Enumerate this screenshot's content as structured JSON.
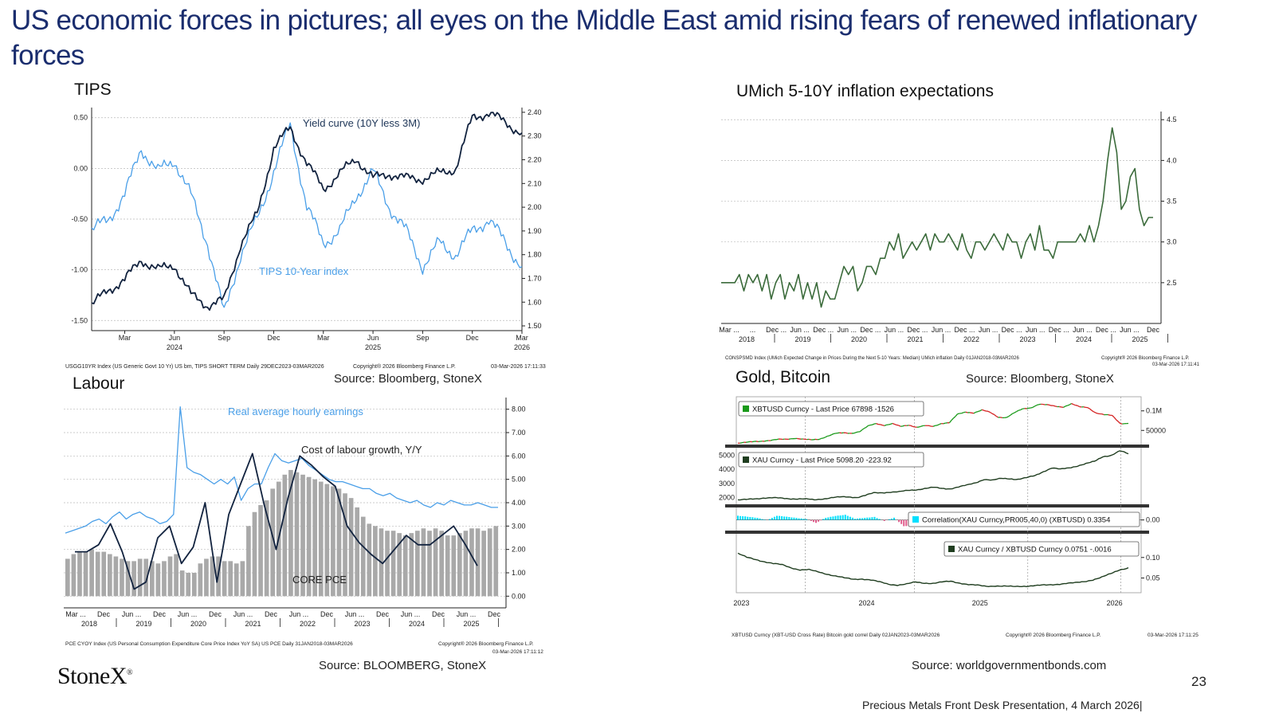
{
  "slide": {
    "title": "US  economic forces in pictures; all eyes on the Middle East amid rising fears of renewed inflationary forces",
    "page_number": "23",
    "footer": "Precious Metals Front Desk Presentation, 4 March 2026|",
    "logo_text": "StoneX",
    "logo_mark": "®",
    "colors": {
      "title": "#1a2d6e",
      "light_blue": "#4a9fe8",
      "navy": "#12233f",
      "green": "#3b6b3b",
      "bar_grey": "#a9a9a9"
    }
  },
  "panels": {
    "tips": {
      "title": "TIPS",
      "source": "Source: Bloomberg, StoneX",
      "footnote_left": "USGG10YR Index (US Generic Govt 10 Yr) US bm, TIPS SHORT TERM Daily 29DEC2023-03MAR2026",
      "footnote_mid": "Copyright® 2026 Bloomberg Finance L.P.",
      "footnote_right": "03-Mar-2026 17:11:33"
    },
    "umich": {
      "title": "UMich 5-10Y inflation expectations",
      "footnote_left": "CONSPSMD Index (UMich Expected Change in Prices During the Next 5-10 Years: Median) UMich inflation Daily 01JAN2018-03MAR2026",
      "footnote_mid": "Copyright® 2026 Bloomberg Finance L.P.",
      "footnote_right": "03-Mar-2026 17:11:41"
    },
    "labour": {
      "title": "Labour",
      "source": "Source: BLOOMBERG, StoneX",
      "footnote_left": "PCE CYOY Index (US Personal Consumption Expenditure Core Price Index YoY SA) US PCE Daily 31JAN2018-03MAR2026",
      "footnote_mid": "Copyright® 2026 Bloomberg Finance L.P.",
      "footnote_right": "03-Mar-2026 17:11:12"
    },
    "gold_btc": {
      "title": "Gold, Bitcoin",
      "source_top": "Source: Bloomberg, StoneX",
      "source_bottom": "Source: worldgovernmentbonds.com",
      "footnote_left": "XBTUSD Curncy (XBT-USD Cross Rate) Bitcoin gold correl Daily 02JAN2023-03MAR2026",
      "footnote_mid": "Copyright® 2026 Bloomberg Finance L.P.",
      "footnote_right": "03-Mar-2026 17:11:25"
    }
  },
  "chart_data": [
    {
      "id": "tips",
      "type": "line",
      "title": "TIPS",
      "x_range": [
        "2024-01-01",
        "2026-03-03"
      ],
      "x_ticks": [
        {
          "label": "Mar",
          "sub": "",
          "t": 2
        },
        {
          "label": "Jun",
          "sub": "2024",
          "t": 5
        },
        {
          "label": "Sep",
          "sub": "",
          "t": 8
        },
        {
          "label": "Dec",
          "sub": "",
          "t": 11
        },
        {
          "label": "Mar",
          "sub": "",
          "t": 14
        },
        {
          "label": "Jun",
          "sub": "2025",
          "t": 17
        },
        {
          "label": "Sep",
          "sub": "",
          "t": 20
        },
        {
          "label": "Dec",
          "sub": "",
          "t": 23
        },
        {
          "label": "Mar",
          "sub": "2026",
          "t": 26
        }
      ],
      "y_left": {
        "range": [
          -1.6,
          0.6
        ],
        "ticks": [
          "0.50",
          "0.00",
          "-0.50",
          "-1.00",
          "-1.50"
        ]
      },
      "y_right": {
        "range": [
          1.48,
          2.42
        ],
        "ticks": [
          "2.40",
          "2.30",
          "2.20",
          "2.10",
          "2.00",
          "1.90",
          "1.80",
          "1.70",
          "1.60",
          "1.50"
        ]
      },
      "series": [
        {
          "name": "Yield curve (10Y less 3M)",
          "axis": "left",
          "color": "#12233f",
          "t": [
            0,
            1,
            2,
            3,
            4,
            5,
            6,
            7,
            8,
            9,
            10,
            11,
            12,
            13,
            14,
            15,
            16,
            17,
            18,
            19,
            20,
            21,
            22,
            23,
            24,
            25,
            26
          ],
          "values": [
            -1.35,
            -1.2,
            -1.1,
            -0.9,
            -1.0,
            -0.95,
            -1.25,
            -1.35,
            -1.3,
            -0.75,
            -0.45,
            0.2,
            0.4,
            0.05,
            -0.2,
            -0.05,
            0.1,
            -0.1,
            -0.05,
            -0.1,
            -0.1,
            -0.05,
            0.0,
            0.5,
            0.55,
            0.45,
            0.35
          ]
        },
        {
          "name": "TIPS 10-Year index",
          "axis": "right",
          "color": "#4a9fe8",
          "t": [
            0,
            1,
            2,
            3,
            4,
            5,
            6,
            7,
            8,
            9,
            10,
            11,
            12,
            13,
            14,
            15,
            16,
            17,
            18,
            19,
            20,
            21,
            22,
            23,
            24,
            25,
            26
          ],
          "values": [
            1.9,
            1.95,
            2.05,
            2.25,
            2.15,
            2.2,
            2.05,
            1.85,
            1.55,
            1.8,
            1.95,
            2.15,
            2.35,
            2.0,
            1.85,
            1.9,
            2.05,
            2.15,
            2.0,
            1.9,
            1.75,
            1.85,
            1.8,
            1.9,
            1.95,
            1.85,
            1.75
          ]
        }
      ],
      "annotations": [
        "Yield curve (10Y less 3M)",
        "TIPS 10-Year index"
      ]
    },
    {
      "id": "umich",
      "type": "line",
      "title": "UMich 5-10Y inflation expectations",
      "x_ticks_top": [
        "Mar ...",
        "...",
        "Dec ...",
        "Jun ...",
        "Dec ...",
        "Jun ...",
        "Dec ...",
        "Jun ...",
        "Dec ...",
        "Jun ...",
        "Dec ...",
        "Jun ...",
        "Dec ...",
        "Jun ...",
        "Dec ...",
        "Jun ...",
        "Dec ...",
        "Jun ...",
        "Dec"
      ],
      "x_ticks_year": [
        "2018",
        "2019",
        "2020",
        "2021",
        "2022",
        "2023",
        "2024",
        "2025"
      ],
      "y_right": {
        "range": [
          2.0,
          4.6
        ],
        "ticks": [
          "4.5",
          "4.0",
          "3.5",
          "3.0",
          "2.5"
        ]
      },
      "series": [
        {
          "name": "",
          "color": "#3b6b3b",
          "values": [
            2.5,
            2.5,
            2.5,
            2.5,
            2.6,
            2.4,
            2.6,
            2.5,
            2.6,
            2.4,
            2.6,
            2.3,
            2.5,
            2.6,
            2.3,
            2.5,
            2.4,
            2.6,
            2.3,
            2.5,
            2.3,
            2.5,
            2.2,
            2.4,
            2.3,
            2.3,
            2.5,
            2.7,
            2.6,
            2.7,
            2.4,
            2.5,
            2.7,
            2.7,
            2.6,
            2.8,
            2.8,
            3.0,
            2.9,
            3.1,
            2.8,
            2.9,
            3.0,
            2.9,
            3.0,
            3.1,
            2.9,
            3.1,
            3.0,
            3.0,
            3.1,
            3.0,
            2.9,
            3.1,
            2.9,
            2.8,
            3.0,
            3.0,
            2.9,
            3.0,
            3.1,
            3.0,
            2.9,
            3.1,
            3.0,
            3.0,
            2.8,
            3.0,
            3.1,
            2.9,
            3.2,
            2.9,
            2.9,
            2.8,
            3.0,
            3.0,
            3.0,
            3.0,
            3.0,
            3.1,
            3.0,
            3.2,
            3.0,
            3.2,
            3.5,
            4.0,
            4.4,
            4.1,
            3.4,
            3.5,
            3.8,
            3.9,
            3.4,
            3.2,
            3.3,
            3.3
          ]
        }
      ]
    },
    {
      "id": "labour",
      "type": "bar",
      "title": "Labour",
      "x_ticks_top": [
        "Mar ...",
        "Dec",
        "Jun ...",
        "Dec",
        "Jun ...",
        "Dec",
        "Jun ...",
        "Dec",
        "Jun ...",
        "Dec",
        "Jun ...",
        "Dec",
        "Jun ...",
        "Dec",
        "Jun ...",
        "Dec"
      ],
      "x_ticks_year": [
        "2018",
        "2019",
        "2020",
        "2021",
        "2022",
        "2023",
        "2024",
        "2025"
      ],
      "y_right": {
        "range": [
          -0.5,
          8.5
        ],
        "ticks": [
          "8.00",
          "7.00",
          "6.00",
          "5.00",
          "4.00",
          "3.00",
          "2.00",
          "1.00",
          "0.00"
        ]
      },
      "series": [
        {
          "name": "CORE PCE",
          "type": "bar",
          "color": "#a9a9a9",
          "values": [
            1.6,
            1.8,
            1.9,
            1.9,
            2.0,
            1.9,
            1.9,
            1.8,
            1.7,
            1.6,
            1.5,
            1.5,
            1.6,
            1.6,
            1.5,
            1.4,
            1.5,
            1.7,
            1.8,
            1.1,
            1.0,
            1.0,
            1.4,
            1.6,
            1.7,
            1.7,
            1.5,
            1.5,
            1.4,
            1.5,
            3.0,
            3.6,
            3.9,
            4.1,
            4.6,
            4.9,
            5.2,
            5.4,
            5.3,
            5.2,
            5.1,
            5.0,
            4.9,
            4.8,
            4.7,
            4.6,
            4.4,
            4.2,
            3.8,
            3.4,
            3.1,
            3.0,
            2.9,
            2.8,
            2.8,
            2.7,
            2.6,
            2.7,
            2.8,
            2.9,
            2.8,
            2.9,
            2.8,
            2.6,
            2.6,
            2.7,
            2.8,
            2.9,
            2.9,
            2.8,
            2.9,
            3.0
          ]
        },
        {
          "name": "Real average hourly earnings",
          "type": "line",
          "color": "#4a9fe8",
          "values": [
            2.7,
            2.8,
            2.9,
            3.0,
            3.2,
            3.3,
            3.1,
            3.4,
            3.6,
            3.3,
            3.5,
            3.6,
            3.4,
            3.3,
            3.1,
            3.2,
            3.5,
            8.1,
            5.5,
            5.3,
            5.2,
            5.0,
            4.8,
            5.0,
            4.8,
            5.1,
            4.1,
            4.6,
            4.8,
            4.8,
            5.5,
            6.1,
            5.8,
            5.7,
            5.8,
            5.9,
            5.6,
            5.4,
            5.2,
            5.0,
            4.9,
            4.9,
            4.8,
            4.7,
            4.6,
            4.6,
            4.4,
            4.3,
            4.4,
            4.2,
            4.1,
            4.0,
            4.1,
            3.9,
            3.8,
            4.0,
            3.9,
            4.1,
            4.0,
            3.9,
            3.9,
            4.0,
            3.9,
            3.8,
            3.8
          ]
        },
        {
          "name": "Cost of labour growth, Y/Y",
          "type": "line",
          "color": "#12233f",
          "values": [
            1.9,
            1.9,
            2.2,
            3.1,
            1.9,
            0.3,
            0.6,
            2.5,
            3.0,
            1.4,
            2.1,
            4.0,
            0.6,
            3.5,
            4.8,
            6.1,
            3.9,
            2.0,
            4.2,
            6.0,
            5.6,
            5.1,
            4.7,
            3.0,
            2.3,
            1.8,
            1.4,
            2.0,
            2.6,
            2.2,
            2.2,
            2.6,
            3.0,
            2.2,
            1.3
          ]
        }
      ],
      "annotations": [
        "Real average hourly earnings",
        "Cost of labour growth, Y/Y",
        "CORE PCE"
      ]
    },
    {
      "id": "gold_btc",
      "type": "line",
      "title": "Gold, Bitcoin",
      "x_ticks": [
        "2023",
        "2024",
        "2025",
        "2026"
      ],
      "panes": [
        {
          "legend": "XBTUSD Curncy - Last Price 67898  -1526",
          "y_ticks": [
            "0.1M",
            "50000"
          ],
          "y_range": [
            20000,
            130000
          ],
          "color_up": "#1a9a1a",
          "color_down": "#d42020",
          "values": [
            17000,
            19000,
            22000,
            23000,
            24000,
            27000,
            28000,
            30000,
            27000,
            26000,
            28000,
            35000,
            42000,
            44000,
            43000,
            47000,
            61000,
            68000,
            63000,
            67000,
            60000,
            64000,
            58000,
            62000,
            60000,
            68000,
            70000,
            91000,
            97000,
            95000,
            102000,
            96000,
            84000,
            83000,
            95000,
            105000,
            108000,
            117000,
            115000,
            112000,
            110000,
            118000,
            110000,
            109000,
            95000,
            90000,
            88000,
            68000,
            67898
          ]
        },
        {
          "legend": "XAU Curncy - Last Price 5098.20  -223.92",
          "y_ticks": [
            "5000",
            "4000",
            "3000",
            "2000"
          ],
          "y_range": [
            1700,
            5300
          ],
          "color": "#1f3d1f",
          "values": [
            1830,
            1860,
            1920,
            1980,
            1990,
            1960,
            1930,
            1920,
            1900,
            1840,
            1920,
            2000,
            2040,
            2050,
            2020,
            2160,
            2330,
            2350,
            2400,
            2410,
            2500,
            2560,
            2650,
            2720,
            2650,
            2630,
            2760,
            2880,
            3050,
            3300,
            3230,
            3350,
            3340,
            3300,
            3400,
            3550,
            3850,
            4100,
            4000,
            4100,
            4250,
            4400,
            4550,
            4900,
            5000,
            5300,
            5098
          ]
        },
        {
          "legend": "Correlation(XAU Curncy,PR005,40,0) (XBTUSD) 0.3354",
          "y_ticks": [
            "0.00"
          ],
          "y_range": [
            -0.4,
            0.45
          ],
          "color": "#00e0ff",
          "values": [
            0.2,
            0.15,
            0.1,
            0.0,
            0.2,
            0.15,
            0.1,
            0.05,
            -0.15,
            0.1,
            0.2,
            0.25,
            0.05,
            0.1,
            0.15,
            -0.05,
            0.1,
            -0.3,
            -0.25,
            0.0,
            0.05,
            0.15,
            0.1,
            0.05,
            0.1,
            0.0,
            -0.1,
            0.05,
            0.1,
            0.15,
            0.1,
            0.0,
            0.1,
            0.15,
            0.05,
            0.1,
            0.05,
            0.0,
            0.2,
            0.3,
            0.3354
          ]
        },
        {
          "legend": "XAU Curncy / XBTUSD Curncy 0.0751  -.0016",
          "y_ticks": [
            "0.10",
            "0.05"
          ],
          "y_range": [
            0.02,
            0.15
          ],
          "color": "#1f3d1f",
          "values": [
            0.11,
            0.1,
            0.095,
            0.09,
            0.085,
            0.082,
            0.075,
            0.07,
            0.07,
            0.065,
            0.06,
            0.055,
            0.05,
            0.047,
            0.048,
            0.045,
            0.04,
            0.035,
            0.033,
            0.035,
            0.04,
            0.038,
            0.037,
            0.04,
            0.042,
            0.038,
            0.034,
            0.032,
            0.03,
            0.031,
            0.03,
            0.029,
            0.03,
            0.031,
            0.032,
            0.033,
            0.035,
            0.037,
            0.038,
            0.041,
            0.046,
            0.052,
            0.06,
            0.07,
            0.0751
          ]
        }
      ]
    }
  ]
}
